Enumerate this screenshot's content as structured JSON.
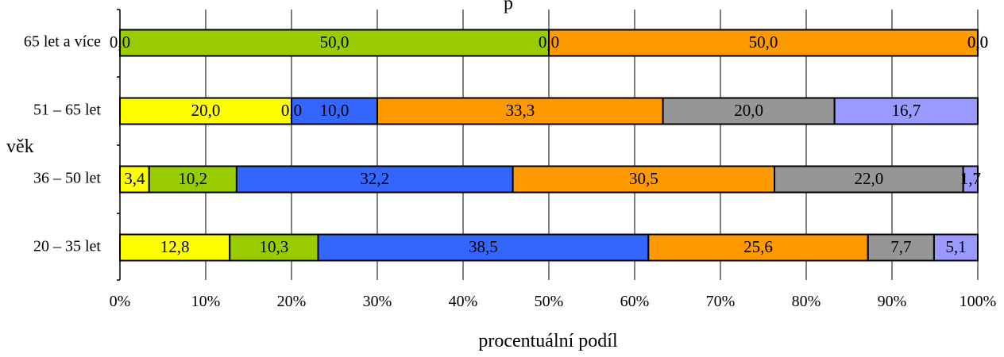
{
  "chart_data": {
    "type": "bar",
    "orientation": "horizontal",
    "stacked": "percent",
    "title_fragment": "p",
    "xlabel": "procentuální podíl",
    "ylabel": "věk",
    "xlim": [
      0,
      100
    ],
    "x_ticks": [
      "0%",
      "10%",
      "20%",
      "30%",
      "40%",
      "50%",
      "60%",
      "70%",
      "80%",
      "90%",
      "100%"
    ],
    "grid": "vertical",
    "categories": [
      "65 let a více",
      "51 – 65 let",
      "36 – 50 let",
      "20 – 35 let"
    ],
    "series": [
      {
        "color": "#ffff00",
        "values": [
          0.0,
          20.0,
          3.4,
          12.8
        ],
        "labels": [
          "0,0",
          "20,0",
          "3,4",
          "12,8"
        ]
      },
      {
        "color": "#99cc00",
        "values": [
          50.0,
          0.0,
          10.2,
          10.3
        ],
        "labels": [
          "50,0",
          "0,0",
          "10,2",
          "10,3"
        ]
      },
      {
        "color": "#3366ff",
        "values": [
          0.0,
          10.0,
          32.2,
          38.5
        ],
        "labels": [
          "0,0",
          "10,0",
          "32,2",
          "38,5"
        ]
      },
      {
        "color": "#ff9900",
        "values": [
          50.0,
          33.3,
          30.5,
          25.6
        ],
        "labels": [
          "50,0",
          "33,3",
          "30,5",
          "25,6"
        ]
      },
      {
        "color": "#969696",
        "values": [
          0.0,
          20.0,
          22.0,
          7.7
        ],
        "labels": [
          "0,0",
          "20,0",
          "22,0",
          "7,7"
        ]
      },
      {
        "color": "#9999ff",
        "values": [
          0.0,
          16.7,
          1.7,
          5.1
        ],
        "labels": [
          "0,0",
          "16,7",
          "1,7",
          "5,1"
        ]
      }
    ]
  }
}
